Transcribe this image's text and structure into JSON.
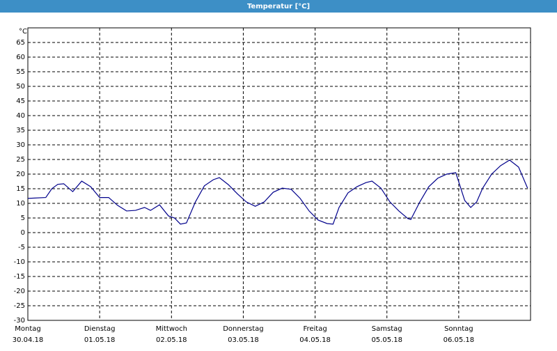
{
  "chart_data": {
    "type": "line",
    "title": "Temperatur [°C]",
    "y_label": "°C",
    "x": [
      0,
      6,
      8,
      10,
      12,
      15,
      18,
      21,
      24,
      27,
      30,
      33,
      36,
      39,
      41,
      44,
      47,
      49,
      51,
      53,
      56,
      59,
      62,
      64,
      67,
      70,
      73,
      76,
      79,
      82,
      85,
      88,
      91,
      94,
      97,
      100,
      102,
      104,
      107,
      110,
      113,
      115,
      118,
      121,
      124,
      127,
      128,
      131,
      134,
      137,
      140,
      143,
      146,
      148,
      150,
      152,
      155,
      158,
      161,
      164,
      167
    ],
    "series": [
      {
        "name": "Temperatur",
        "color": "#00008b",
        "values": [
          11.7,
          12,
          15,
          16.5,
          16.7,
          14,
          17.6,
          15.7,
          12,
          12,
          9.3,
          7.4,
          7.6,
          8.6,
          7.6,
          9.5,
          5.7,
          5,
          2.9,
          3.3,
          10.5,
          16,
          18.1,
          18.8,
          16.4,
          13.3,
          10.5,
          9,
          10.5,
          13.8,
          15.2,
          14.8,
          11.7,
          7.4,
          4.3,
          3.1,
          2.9,
          8.6,
          13.6,
          15.7,
          17.1,
          17.6,
          15.2,
          10.5,
          7.4,
          4.8,
          4.5,
          10.5,
          15.7,
          18.6,
          20,
          20.5,
          11,
          8.6,
          10.5,
          15.2,
          20,
          22.9,
          24.8,
          22.4,
          15.2
        ]
      }
    ],
    "xlim": [
      0,
      168
    ],
    "xticks": [
      {
        "value": 0,
        "label": "Montag"
      },
      {
        "value": 24,
        "label": "Dienstag"
      },
      {
        "value": 48,
        "label": "Mittwoch"
      },
      {
        "value": 72,
        "label": "Donnerstag"
      },
      {
        "value": 96,
        "label": "Freitag"
      },
      {
        "value": 120,
        "label": "Samstag"
      },
      {
        "value": 144,
        "label": "Sonntag"
      }
    ],
    "xtick_dates": [
      "30.04.18",
      "01.05.18",
      "02.05.18",
      "03.05.18",
      "04.05.18",
      "05.05.18",
      "06.05.18"
    ],
    "ylim": [
      -30,
      70
    ],
    "yticks": [
      -30,
      -25,
      -20,
      -15,
      -10,
      -5,
      0,
      5,
      10,
      15,
      20,
      25,
      30,
      35,
      40,
      45,
      50,
      55,
      60,
      65
    ],
    "grid": true
  }
}
